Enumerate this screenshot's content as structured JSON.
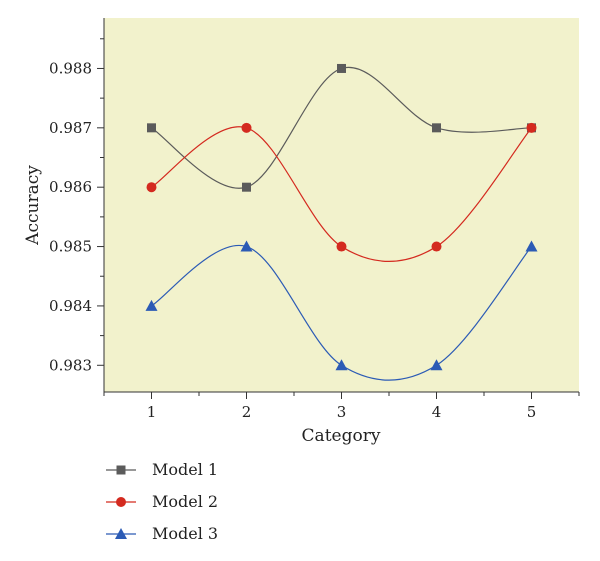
{
  "chart_data": {
    "type": "line",
    "xlabel": "Category",
    "ylabel": "Accuracy",
    "x": [
      1,
      2,
      3,
      4,
      5
    ],
    "xlim": [
      0.5,
      5.5
    ],
    "ylim": [
      0.98255,
      0.98885
    ],
    "yticks": [
      "0.983",
      "0.984",
      "0.985",
      "0.986",
      "0.987",
      "0.988"
    ],
    "xticks": [
      "1",
      "2",
      "3",
      "4",
      "5"
    ],
    "background": "#f2f2cc",
    "grid": false,
    "legend_position": "bottom-left",
    "series": [
      {
        "name": "Model 1",
        "values": [
          0.987,
          0.986,
          0.988,
          0.987,
          0.987
        ],
        "color": "#5b5b5b",
        "marker": "square"
      },
      {
        "name": "Model 2",
        "values": [
          0.986,
          0.987,
          0.985,
          0.985,
          0.987
        ],
        "color": "#d42a1f",
        "marker": "circle"
      },
      {
        "name": "Model 3",
        "values": [
          0.984,
          0.985,
          0.983,
          0.983,
          0.985
        ],
        "color": "#2c5bb5",
        "marker": "triangle"
      }
    ]
  }
}
